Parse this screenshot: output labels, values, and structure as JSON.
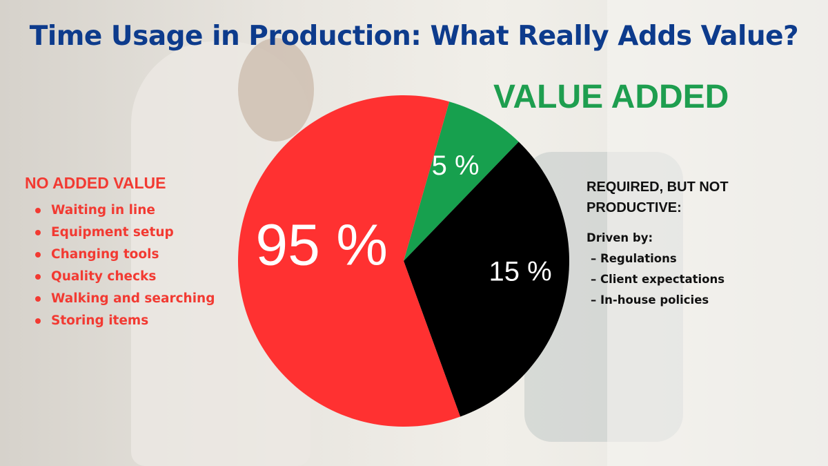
{
  "title": "Time Usage in Production: What Really Adds Value?",
  "value_added_label": "VALUE ADDED",
  "left_panel": {
    "heading": "NO ADDED VALUE",
    "items": [
      "Waiting in line",
      "Equipment setup",
      "Changing tools",
      "Quality checks",
      "Walking and searching",
      "Storing items"
    ]
  },
  "right_panel": {
    "heading": "REQUIRED, BUT NOT PRODUCTIVE:",
    "subheading": "Driven by:",
    "items": [
      "– Regulations",
      "– Client expectations",
      "– In-house policies"
    ]
  },
  "colors": {
    "title": "#0d3b8c",
    "value_added": "#1e9e4f",
    "no_added_value": "#f23a32",
    "required": "#000000"
  },
  "chart_data": {
    "type": "pie",
    "slices": [
      {
        "label": "5 %",
        "value": 5,
        "color": "#17a04e"
      },
      {
        "label": "15 %",
        "value": 15,
        "color": "#000000"
      },
      {
        "label": "95 %",
        "value": 95,
        "color": "#ff3131"
      }
    ]
  }
}
